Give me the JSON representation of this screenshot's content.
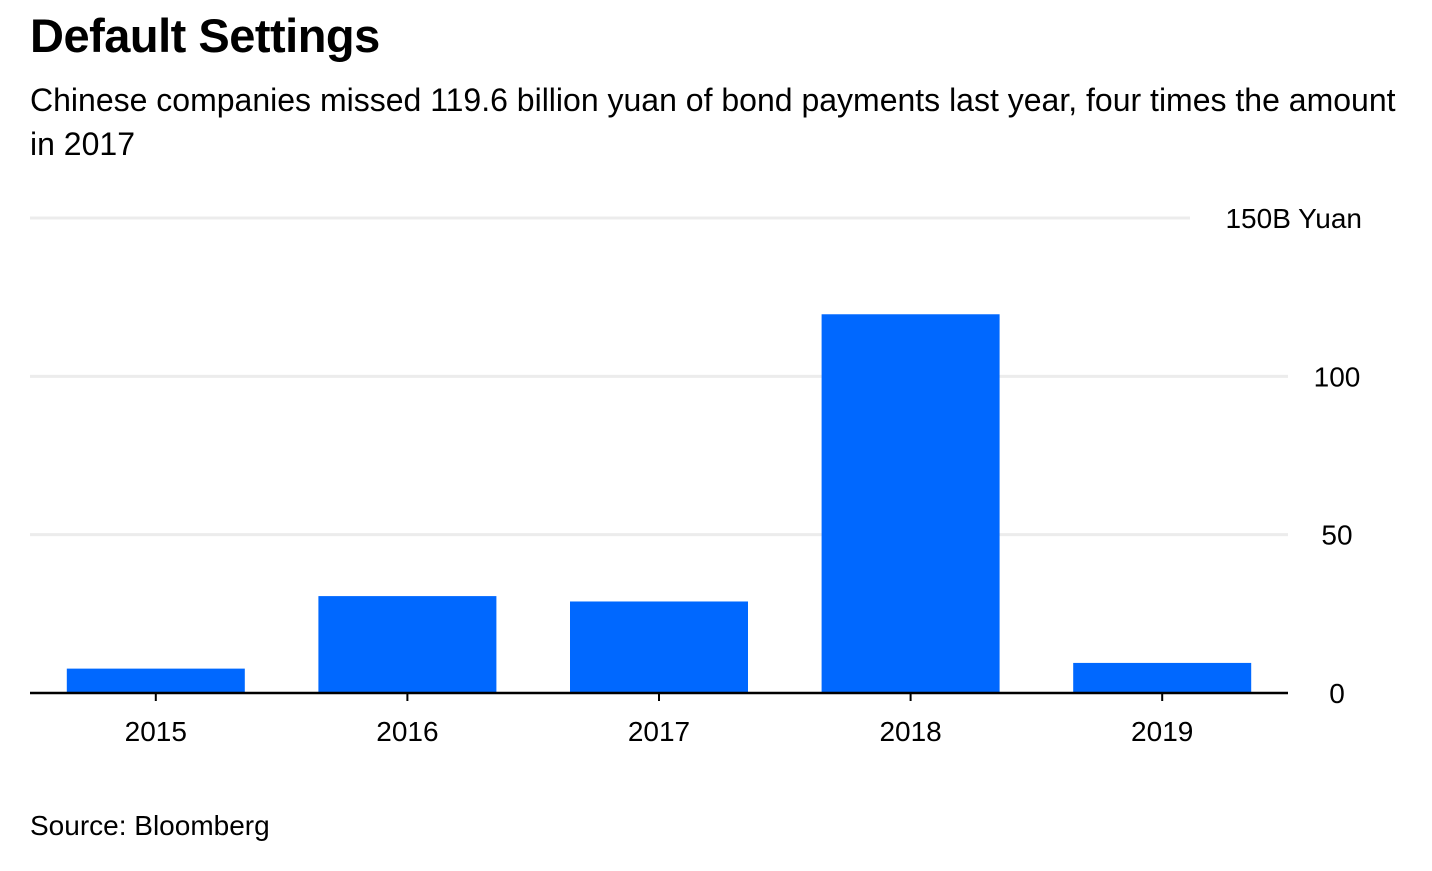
{
  "header": {
    "title": "Default Settings",
    "subtitle": "Chinese companies missed 119.6 billion yuan of bond payments last year, four times the amount in 2017"
  },
  "footer": {
    "source": "Source: Bloomberg"
  },
  "colors": {
    "bar": "#0068ff",
    "grid": "#ececec",
    "axis": "#000000"
  },
  "chart_data": {
    "type": "bar",
    "title": "Default Settings",
    "subtitle": "Chinese companies missed 119.6 billion yuan of bond payments last year, four times the amount in 2017",
    "categories": [
      "2015",
      "2016",
      "2017",
      "2018",
      "2019"
    ],
    "values": [
      7.7,
      30.6,
      28.9,
      119.6,
      9.5
    ],
    "ylabel": "",
    "y_unit": "B Yuan",
    "ylim": [
      0,
      150
    ],
    "yticks": [
      0,
      50,
      100,
      150
    ],
    "ytick_labels": [
      "0",
      "50",
      "100",
      "150B Yuan"
    ],
    "grid": true,
    "legend": "none"
  }
}
